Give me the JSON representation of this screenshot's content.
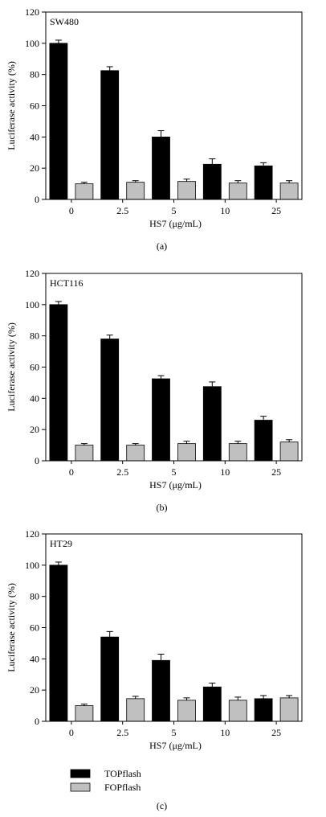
{
  "legend": {
    "entries": [
      {
        "label": "TOPflash",
        "color": "#000000"
      },
      {
        "label": "FOPflash",
        "color": "#c0c0c0"
      }
    ],
    "placement": "bottom-left"
  },
  "chart_data": [
    {
      "type": "bar",
      "panel_label": "(a)",
      "inset_label": "SW480",
      "xlabel": "HS7 (μg/mL)",
      "ylabel": "Luciferase activity (%)",
      "ylim": [
        0,
        120
      ],
      "yticks": [
        0,
        20,
        40,
        60,
        80,
        100,
        120
      ],
      "categories": [
        "0",
        "2.5",
        "5",
        "10",
        "25"
      ],
      "series": [
        {
          "name": "TOPflash",
          "color": "#000000",
          "values": [
            100,
            82.5,
            40,
            22.5,
            21.5
          ],
          "errors": [
            2.0,
            2.5,
            4.0,
            3.5,
            2.0
          ]
        },
        {
          "name": "FOPflash",
          "color": "#c0c0c0",
          "values": [
            10,
            11,
            11.5,
            10.5,
            10.5
          ],
          "errors": [
            1.0,
            1.0,
            1.5,
            1.5,
            1.5
          ]
        }
      ]
    },
    {
      "type": "bar",
      "panel_label": "(b)",
      "inset_label": "HCT116",
      "xlabel": "HS7 (μg/mL)",
      "ylabel": "Luciferase activity (%)",
      "ylim": [
        0,
        120
      ],
      "yticks": [
        0,
        20,
        40,
        60,
        80,
        100,
        120
      ],
      "categories": [
        "0",
        "2.5",
        "5",
        "10",
        "25"
      ],
      "series": [
        {
          "name": "TOPflash",
          "color": "#000000",
          "values": [
            100,
            78,
            52.5,
            47.5,
            26
          ],
          "errors": [
            2.0,
            2.5,
            2.0,
            3.0,
            2.5
          ]
        },
        {
          "name": "FOPflash",
          "color": "#c0c0c0",
          "values": [
            10,
            10,
            11,
            11,
            12
          ],
          "errors": [
            1.0,
            1.0,
            1.5,
            1.5,
            1.5
          ]
        }
      ]
    },
    {
      "type": "bar",
      "panel_label": "(c)",
      "inset_label": "HT29",
      "xlabel": "HS7 (μg/mL)",
      "ylabel": "Luciferase activity (%)",
      "ylim": [
        0,
        120
      ],
      "yticks": [
        0,
        20,
        40,
        60,
        80,
        100,
        120
      ],
      "categories": [
        "0",
        "2.5",
        "5",
        "10",
        "25"
      ],
      "series": [
        {
          "name": "TOPflash",
          "color": "#000000",
          "values": [
            100,
            54,
            39,
            22,
            14.5
          ],
          "errors": [
            2.0,
            3.5,
            4.0,
            2.5,
            2.0
          ]
        },
        {
          "name": "FOPflash",
          "color": "#c0c0c0",
          "values": [
            10,
            14.5,
            13.5,
            13.5,
            15
          ],
          "errors": [
            1.0,
            1.5,
            1.5,
            2.0,
            1.5
          ]
        }
      ]
    }
  ]
}
